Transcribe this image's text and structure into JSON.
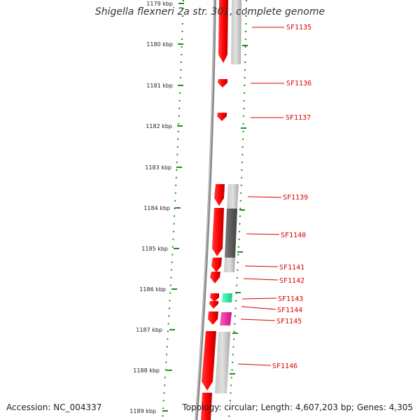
{
  "title": "Shigella flexneri 2a str. 301, complete genome",
  "footer": {
    "accession": "Accession: NC_004337",
    "topology": "Topology: circular; Length: 4,607,203 bp; Genes: 4,305"
  },
  "colors": {
    "cds": "#ff1a1a",
    "tick": "#1f8a1f",
    "backbone": "#7a7a7a",
    "label": "#dd0000",
    "green_feature": "#33ffaa",
    "magenta_feature": "#ff33aa"
  },
  "ticks": [
    "1179 kbp",
    "1180 kbp",
    "1181 kbp",
    "1182 kbp",
    "1183 kbp",
    "1184 kbp",
    "1185 kbp",
    "1186 kbp",
    "1187 kbp",
    "1188 kbp",
    "1189 kbp"
  ],
  "genes": [
    "SF1135",
    "SF1136",
    "SF1137",
    "SF1139",
    "SF1140",
    "SF1141",
    "SF1142",
    "SF1143",
    "SF1144",
    "SF1145",
    "SF1146"
  ]
}
